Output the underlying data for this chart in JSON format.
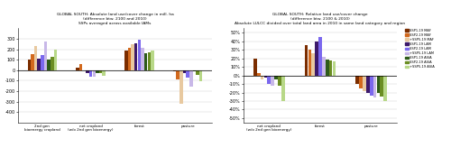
{
  "left_title1": "GLOBAL SOUTH: Absolute land use/cover change in mill. ha",
  "left_title2": "(difference btw. 2100 and 2010)",
  "left_title3": "SSPs averaged across available IAMs",
  "right_title1": "GLOBAL SOUTH: Relative land use/cover change",
  "right_title2": "(difference btw. 2100 & 2010)",
  "right_title3": "Absolute LULCC divided over total land area in 2010 in same land category and region",
  "left_groups": [
    "2nd gen\nbioenergy cropland",
    "net cropland\n(w/o 2nd gen bioenergy)",
    "forest",
    "pasture"
  ],
  "right_groups": [
    "net cropland\n(w/o 2nd gen bioenergy)",
    "forest",
    "pasture"
  ],
  "series_labels": [
    "SSP1-19 MAF",
    "SSP2-19 MAF",
    "+SSP5-19 MAF",
    "SSP1-19 LAM",
    "SSP2-19 LAM",
    "+SSP5-19 LAM",
    "SSP1-19 ASIA",
    "SSP2-19 ASIA",
    "+SSP5-19 ASIA"
  ],
  "colors": [
    "#7B2D00",
    "#D2691E",
    "#E8C9A0",
    "#3D1A6B",
    "#7B68EE",
    "#C8B8E8",
    "#2E5B1A",
    "#6B8E23",
    "#B8D888"
  ],
  "left_data": {
    "2nd gen bioenergy cropland": [
      100,
      150,
      230,
      110,
      140,
      270,
      100,
      130,
      195
    ],
    "net cropland (w/o 2nd gen bioenergy)": [
      25,
      55,
      -5,
      -25,
      -60,
      -60,
      -25,
      -30,
      -55
    ],
    "forest": [
      190,
      210,
      245,
      260,
      290,
      215,
      160,
      170,
      190
    ],
    "pasture": [
      -15,
      -90,
      -320,
      -25,
      -70,
      -160,
      -10,
      -45,
      -110
    ]
  },
  "right_data": {
    "net cropland (w/o 2nd gen bioenergy)": [
      0.2,
      0.03,
      -0.05,
      -0.03,
      -0.1,
      -0.12,
      -0.05,
      -0.12,
      -0.3
    ],
    "forest": [
      0.35,
      0.3,
      0.26,
      0.4,
      0.45,
      0.22,
      0.18,
      0.17,
      0.16
    ],
    "pasture": [
      -0.1,
      -0.15,
      -0.18,
      -0.2,
      -0.24,
      -0.26,
      -0.2,
      -0.25,
      -0.3
    ]
  },
  "left_ylim": [
    -500,
    400
  ],
  "left_yticks": [
    -400,
    -300,
    -200,
    -100,
    0,
    100,
    200,
    300
  ],
  "right_ylim": [
    -0.55,
    0.55
  ],
  "right_yticks": [
    -0.5,
    -0.4,
    -0.3,
    -0.2,
    -0.1,
    0.0,
    0.1,
    0.2,
    0.3,
    0.4,
    0.5
  ],
  "bg_color": "#f5f5f0",
  "grid_color": "#cccccc"
}
